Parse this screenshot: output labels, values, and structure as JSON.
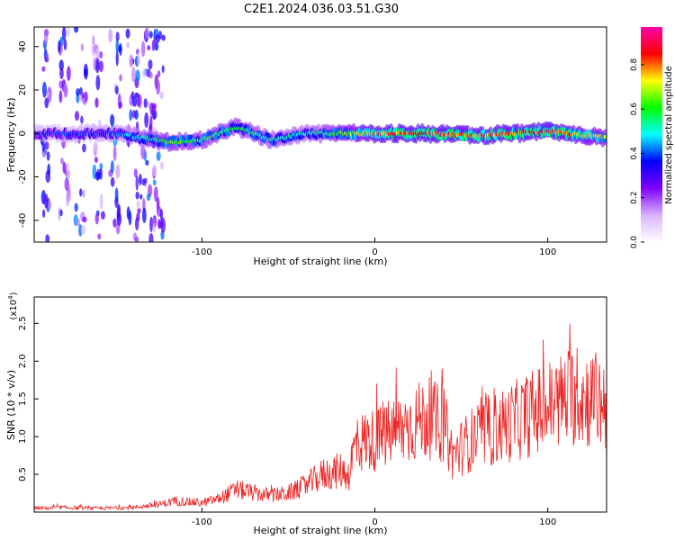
{
  "figure": {
    "title": "C2E1.2024.036.03.51.G30"
  },
  "chart_data": [
    {
      "type": "heatmap",
      "xlabel": "Height of straight line (km)",
      "ylabel": "Frequency (Hz)",
      "xlim": [
        -197,
        134
      ],
      "ylim": [
        -50,
        49
      ],
      "x_ticks": [
        -100,
        0,
        100
      ],
      "y_ticks": [
        -40,
        -20,
        0,
        20,
        40
      ],
      "colorbar": {
        "label": "Normalized spectral amplitude",
        "range": [
          0,
          0.97
        ],
        "ticks": [
          0.0,
          0.2,
          0.4,
          0.6,
          0.8
        ],
        "colors": [
          "#ffffff",
          "#d9b3ff",
          "#8000ff",
          "#0000ff",
          "#00ffff",
          "#00ff00",
          "#ffff00",
          "#ff0000",
          "#ff00aa"
        ]
      },
      "band": {
        "description_points": [
          {
            "x": -197,
            "center": 0,
            "amp": 0.35
          },
          {
            "x": -150,
            "center": 0,
            "amp": 0.4
          },
          {
            "x": -120,
            "center": -4,
            "amp": 0.65
          },
          {
            "x": -100,
            "center": -3,
            "amp": 0.6
          },
          {
            "x": -80,
            "center": 3,
            "amp": 0.6
          },
          {
            "x": -60,
            "center": -3,
            "amp": 0.55
          },
          {
            "x": -40,
            "center": 0,
            "amp": 0.5
          },
          {
            "x": -20,
            "center": 0,
            "amp": 0.65
          },
          {
            "x": 0,
            "center": 0,
            "amp": 0.8
          },
          {
            "x": 30,
            "center": 0,
            "amp": 0.85
          },
          {
            "x": 60,
            "center": -1,
            "amp": 0.8
          },
          {
            "x": 100,
            "center": 1,
            "amp": 0.85
          },
          {
            "x": 134,
            "center": -2,
            "amp": 0.7
          }
        ]
      },
      "vertical_streaks": [
        -190,
        -180,
        -170,
        -160,
        -150,
        -140,
        -135,
        -130,
        -125
      ]
    },
    {
      "type": "line",
      "xlabel": "Height of straight line (km)",
      "ylabel": "SNR (10 * v/v)",
      "y_multiplier": "(x10^4)",
      "xlim": [
        -197,
        134
      ],
      "ylim": [
        0,
        2.85
      ],
      "x_ticks": [
        -100,
        0,
        100
      ],
      "y_ticks": [
        0.5,
        1.0,
        1.5,
        2.0,
        2.5
      ],
      "y_tick_labels": [
        "0.5",
        "1.0",
        "1.5",
        "2.0",
        "2.5"
      ],
      "color": "#ee2222",
      "series": [
        {
          "x": [
            -197,
            -180,
            -160,
            -140,
            -125,
            -115,
            -100,
            -90,
            -80,
            -70,
            -60,
            -50,
            -40,
            -30,
            -20,
            -15,
            -12,
            -10,
            -5,
            0,
            10,
            20,
            30,
            40,
            45,
            55,
            70,
            85,
            100,
            115,
            125,
            134
          ],
          "y": [
            0.05,
            0.06,
            0.05,
            0.06,
            0.1,
            0.15,
            0.12,
            0.18,
            0.3,
            0.25,
            0.22,
            0.25,
            0.35,
            0.5,
            0.55,
            0.5,
            0.85,
            0.9,
            0.95,
            0.95,
            1.05,
            1.15,
            1.25,
            1.15,
            0.75,
            0.95,
            1.1,
            1.25,
            1.4,
            1.55,
            1.5,
            1.45
          ]
        }
      ]
    }
  ]
}
